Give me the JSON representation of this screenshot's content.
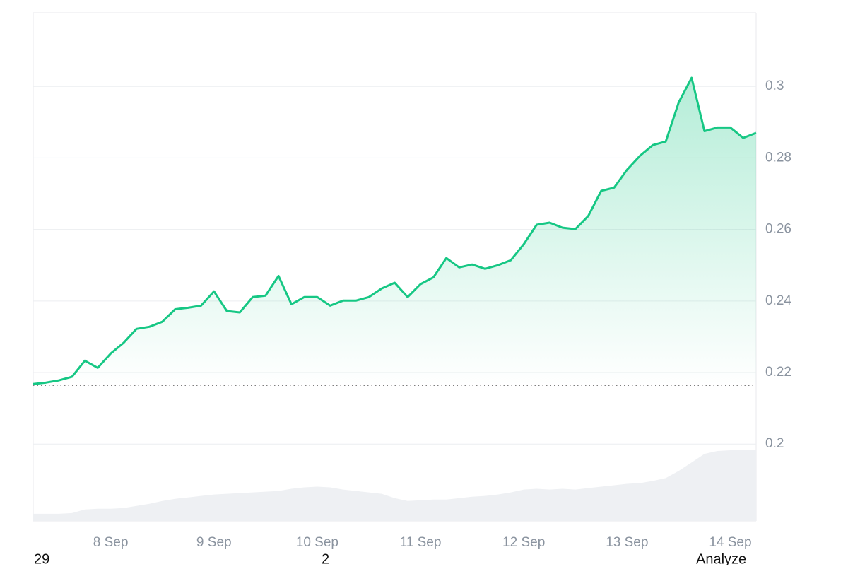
{
  "chart_data": {
    "type": "line",
    "categories": [
      null,
      null,
      null,
      null,
      null,
      null,
      "8 Sep",
      null,
      null,
      null,
      null,
      null,
      null,
      null,
      "9 Sep",
      null,
      null,
      null,
      null,
      null,
      null,
      null,
      "10 Sep",
      null,
      null,
      null,
      null,
      null,
      null,
      null,
      "11 Sep",
      null,
      null,
      null,
      null,
      null,
      null,
      null,
      "12 Sep",
      null,
      null,
      null,
      null,
      null,
      null,
      null,
      "13 Sep",
      null,
      null,
      null,
      null,
      null,
      null,
      null,
      "14 Sep",
      null,
      null
    ],
    "values": [
      0.2168,
      0.2172,
      0.2178,
      0.2188,
      0.2233,
      0.2213,
      0.2253,
      0.2283,
      0.2322,
      0.2328,
      0.2342,
      0.2377,
      0.2381,
      0.2387,
      0.2427,
      0.2372,
      0.2368,
      0.2411,
      0.2415,
      0.247,
      0.2391,
      0.2411,
      0.2411,
      0.2387,
      0.2401,
      0.2401,
      0.2411,
      0.2435,
      0.2451,
      0.2411,
      0.2447,
      0.2466,
      0.252,
      0.2494,
      0.2502,
      0.249,
      0.25,
      0.2514,
      0.2559,
      0.2613,
      0.2619,
      0.2605,
      0.2601,
      0.2638,
      0.2708,
      0.2717,
      0.2767,
      0.2806,
      0.2836,
      0.2846,
      0.2955,
      0.3024,
      0.2875,
      0.2885,
      0.2885,
      0.2856,
      0.287
    ],
    "color": "#16c784",
    "baseline": 0.2164,
    "ylim": [
      0.1785,
      0.3206
    ],
    "yticks": [
      0.2,
      0.22,
      0.24,
      0.26,
      0.28,
      0.3
    ],
    "grid": true,
    "volume": {
      "color": "#eef0f3",
      "lim": [
        0,
        100
      ],
      "values": [
        10,
        10,
        10,
        11,
        16,
        17,
        17,
        18,
        21,
        24,
        28,
        31,
        33,
        35,
        37,
        38,
        39,
        40,
        41,
        42,
        45,
        47,
        48,
        47,
        44,
        42,
        40,
        38,
        32,
        28,
        29,
        30,
        30,
        32,
        34,
        35,
        37,
        40,
        44,
        45,
        44,
        45,
        44,
        46,
        48,
        50,
        52,
        53,
        56,
        60,
        70,
        82,
        94,
        98,
        99,
        99,
        100
      ]
    }
  },
  "bottom_bar": {
    "left": "29",
    "middle": "2",
    "right": "Analyze"
  }
}
